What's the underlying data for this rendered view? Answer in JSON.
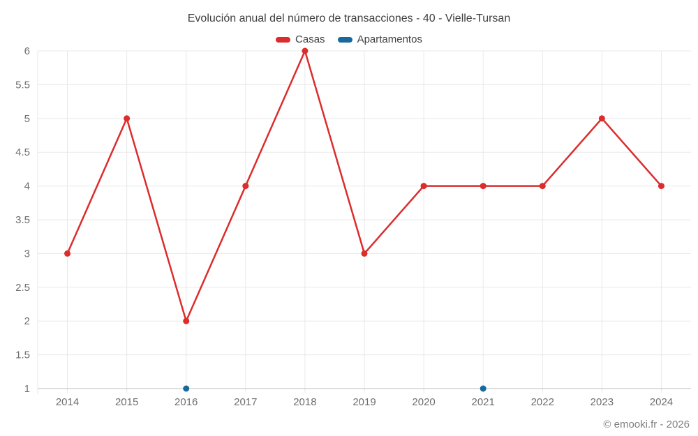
{
  "footer": {
    "text": "© emooki.fr - 2026"
  },
  "chart_data": {
    "type": "line",
    "title": "Evolución anual del número de transacciones - 40 - Vielle-Tursan",
    "categories": [
      "2014",
      "2015",
      "2016",
      "2017",
      "2018",
      "2019",
      "2020",
      "2021",
      "2022",
      "2023",
      "2024"
    ],
    "series": [
      {
        "name": "Casas",
        "color": "#dc2c2c",
        "values": [
          3,
          5,
          2,
          4,
          6,
          3,
          4,
          4,
          4,
          5,
          4
        ]
      },
      {
        "name": "Apartamentos",
        "color": "#17699e",
        "values": [
          null,
          null,
          1,
          null,
          null,
          null,
          null,
          1,
          null,
          null,
          null
        ]
      }
    ],
    "xlabel": "",
    "ylabel": "",
    "ylim": [
      1,
      6
    ],
    "yticks": [
      1,
      1.5,
      2,
      2.5,
      3,
      3.5,
      4,
      4.5,
      5,
      5.5,
      6
    ],
    "grid": true,
    "legend_position": "top",
    "grid_color": "#e8e8e8",
    "axis_line_color": "#bdbdbd",
    "tick_label_color": "#6e6e6e",
    "title_color": "#3f3f3f"
  }
}
